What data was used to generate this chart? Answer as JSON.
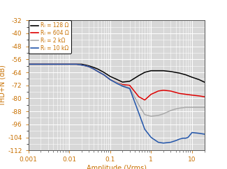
{
  "xlabel": "Amplitude (Vrms)",
  "ylabel": "THD+N (dB)",
  "xlim": [
    0.001,
    20
  ],
  "ylim": [
    -112,
    -32
  ],
  "yticks": [
    -112,
    -104,
    -96,
    -88,
    -80,
    -72,
    -64,
    -56,
    -48,
    -40,
    -32
  ],
  "xticks": [
    0.001,
    0.01,
    0.1,
    1,
    10
  ],
  "xtick_labels": [
    "0.001",
    "0.01",
    "0.1",
    "1",
    "10"
  ],
  "label_color": "#c87000",
  "tick_color": "#c87000",
  "plot_bg": "#d8d8d8",
  "grid_color": "#ffffff",
  "legend": [
    {
      "label": "Rₗ = 128 Ω",
      "color": "#000000"
    },
    {
      "label": "Rₗ = 604 Ω",
      "color": "#dd0000"
    },
    {
      "label": "Rₗ = 2 kΩ",
      "color": "#aaaaaa"
    },
    {
      "label": "Rₗ = 10 kΩ",
      "color": "#2255aa"
    }
  ],
  "curves": {
    "128ohm": {
      "color": "#000000",
      "x": [
        0.001,
        0.003,
        0.007,
        0.01,
        0.015,
        0.02,
        0.025,
        0.03,
        0.04,
        0.05,
        0.07,
        0.1,
        0.15,
        0.2,
        0.3,
        0.5,
        0.7,
        1.0,
        1.5,
        2.0,
        3.0,
        5.0,
        7.0,
        10.0,
        15.0,
        20.0
      ],
      "y": [
        -59,
        -59,
        -59,
        -59,
        -59,
        -59,
        -59.5,
        -60,
        -61,
        -62,
        -64,
        -66.5,
        -68.5,
        -70,
        -69.5,
        -66,
        -64,
        -63,
        -63,
        -63,
        -63.5,
        -64.5,
        -65.5,
        -67,
        -68.5,
        -70
      ]
    },
    "604ohm": {
      "color": "#dd0000",
      "x": [
        0.001,
        0.003,
        0.007,
        0.01,
        0.015,
        0.02,
        0.025,
        0.03,
        0.04,
        0.05,
        0.07,
        0.1,
        0.15,
        0.2,
        0.3,
        0.5,
        0.7,
        1.0,
        1.5,
        2.0,
        3.0,
        5.0,
        7.0,
        10.0,
        15.0,
        20.0
      ],
      "y": [
        -59,
        -59,
        -59,
        -59,
        -59,
        -59.5,
        -60,
        -60.5,
        -62,
        -63.5,
        -65.5,
        -68.5,
        -70.5,
        -71.5,
        -72,
        -79,
        -81,
        -77.5,
        -75.5,
        -75,
        -75.5,
        -77,
        -77.5,
        -78,
        -78.5,
        -79
      ]
    },
    "2kohm": {
      "color": "#aaaaaa",
      "x": [
        0.001,
        0.003,
        0.007,
        0.01,
        0.015,
        0.02,
        0.025,
        0.03,
        0.04,
        0.05,
        0.07,
        0.1,
        0.15,
        0.2,
        0.3,
        0.5,
        0.7,
        1.0,
        1.5,
        2.0,
        3.0,
        4.0,
        5.0,
        7.0,
        10.0,
        15.0,
        20.0
      ],
      "y": [
        -59,
        -59,
        -59,
        -59,
        -59,
        -59.5,
        -60,
        -60.5,
        -62,
        -63.5,
        -65.5,
        -68.5,
        -70.5,
        -72,
        -73.5,
        -84,
        -90,
        -91,
        -90.5,
        -89.5,
        -87.5,
        -86.5,
        -86,
        -85.5,
        -85.5,
        -85.5,
        -85.5
      ]
    },
    "10kohm": {
      "color": "#2255aa",
      "x": [
        0.001,
        0.003,
        0.007,
        0.01,
        0.015,
        0.02,
        0.025,
        0.03,
        0.04,
        0.05,
        0.07,
        0.1,
        0.15,
        0.2,
        0.3,
        0.5,
        0.7,
        1.0,
        1.5,
        2.0,
        3.0,
        4.0,
        5.0,
        6.0,
        7.0,
        8.0,
        10.0,
        15.0,
        20.0
      ],
      "y": [
        -59,
        -59,
        -59,
        -59,
        -59,
        -59.5,
        -60,
        -60.5,
        -62,
        -63.5,
        -65.5,
        -68.5,
        -71,
        -72.5,
        -74,
        -89,
        -99,
        -104,
        -107,
        -107.5,
        -107,
        -106,
        -105,
        -104.5,
        -104.5,
        -104,
        -101,
        -101.5,
        -102
      ]
    }
  }
}
